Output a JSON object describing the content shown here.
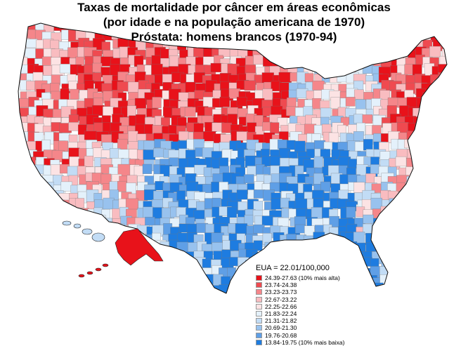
{
  "title": {
    "line1": "Taxas de mortalidade por câncer em áreas econômicas",
    "line2": "(por idade e na população americana de 1970)",
    "line3": "Próstata: homens brancos (1970-94)"
  },
  "legend": {
    "total": "EUA = 22.01/100,000",
    "classes": [
      {
        "label": "24.39-27.63 (10% mais alta)",
        "color": "#e8121a"
      },
      {
        "label": "23.74-24.38",
        "color": "#ef4a50"
      },
      {
        "label": "23.23-23.73",
        "color": "#f5868a"
      },
      {
        "label": "22.67-23.22",
        "color": "#f9bcc0"
      },
      {
        "label": "22.25-22.66",
        "color": "#fce3e4"
      },
      {
        "label": "21.83-22.24",
        "color": "#e4f1fb"
      },
      {
        "label": "21.31-21.82",
        "color": "#c2dcf5"
      },
      {
        "label": "20.69-21.30",
        "color": "#98c2ee"
      },
      {
        "label": "19.76-20.68",
        "color": "#5f9fe6"
      },
      {
        "label": "13.84-19.75 (10% mais baixa)",
        "color": "#1e7ce0"
      }
    ]
  }
}
